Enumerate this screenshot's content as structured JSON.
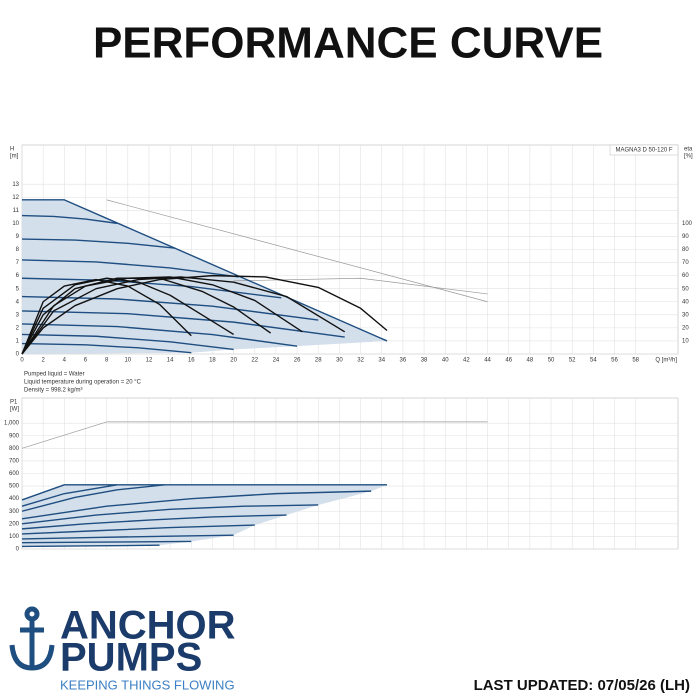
{
  "header": {
    "title": "PERFORMANCE CURVE"
  },
  "chart_data": [
    {
      "type": "line",
      "model": "MAGNA3 D 50-120 F",
      "y_label": [
        "H",
        "[m]"
      ],
      "y2_label": [
        "eta",
        "[%]"
      ],
      "x_label": "Q [m³/h]",
      "notes": [
        "Pumped liquid = Water",
        "Liquid temperature during operation = 20 °C",
        "Density = 998.2 kg/m³"
      ],
      "xlim": [
        0,
        62
      ],
      "xticks": [
        0,
        2,
        4,
        6,
        8,
        10,
        12,
        14,
        16,
        18,
        20,
        22,
        24,
        26,
        28,
        30,
        32,
        34,
        36,
        38,
        40,
        42,
        44,
        46,
        48,
        50,
        52,
        54,
        56,
        58
      ],
      "ylim": [
        0,
        16
      ],
      "yticks": [
        0,
        1,
        2,
        3,
        4,
        5,
        6,
        7,
        8,
        9,
        10,
        11,
        12,
        13
      ],
      "y2lim": [
        0,
        160
      ],
      "y2ticks": [
        10,
        20,
        30,
        40,
        50,
        60,
        70,
        80,
        90,
        100
      ],
      "grid": true,
      "area": {
        "color": "#cfdcea",
        "x": [
          0,
          4,
          34.5,
          26,
          20,
          16,
          0
        ],
        "values": [
          11.8,
          11.8,
          1.0,
          0.6,
          0.35,
          0.1,
          0
        ]
      },
      "series": [
        {
          "color": "#999999",
          "x": [
            8,
            44
          ],
          "values": [
            11.8,
            4.0
          ]
        },
        {
          "color": "#999999",
          "x": [
            20,
            32,
            44
          ],
          "values": [
            5.6,
            5.8,
            4.6
          ]
        },
        {
          "color": "#1f4e80",
          "x": [
            0,
            4,
            34.5
          ],
          "values": [
            11.8,
            11.8,
            1.0
          ]
        },
        {
          "color": "#1f4e80",
          "x": [
            0,
            3,
            6,
            9
          ],
          "values": [
            10.6,
            10.53,
            10.33,
            10.0
          ]
        },
        {
          "color": "#1f4e80",
          "x": [
            0,
            5,
            10,
            14.5
          ],
          "values": [
            8.8,
            8.72,
            8.47,
            8.1
          ]
        },
        {
          "color": "#1f4e80",
          "x": [
            0,
            7,
            14,
            20.5
          ],
          "values": [
            7.2,
            7.05,
            6.59,
            5.9
          ]
        },
        {
          "color": "#1f4e80",
          "x": [
            0,
            8,
            16,
            24.5
          ],
          "values": [
            5.8,
            5.64,
            5.16,
            4.3
          ]
        },
        {
          "color": "#1f4e80",
          "x": [
            0,
            9,
            18,
            28
          ],
          "values": [
            4.4,
            4.21,
            3.66,
            2.6
          ]
        },
        {
          "color": "#1f4e80",
          "x": [
            0,
            10,
            20,
            30.5
          ],
          "values": [
            3.3,
            3.09,
            2.44,
            1.3
          ]
        },
        {
          "color": "#1f4e80",
          "x": [
            0,
            9,
            18,
            26
          ],
          "values": [
            2.3,
            2.1,
            1.49,
            0.6
          ]
        },
        {
          "color": "#1f4e80",
          "x": [
            0,
            7,
            14,
            20
          ],
          "values": [
            1.5,
            1.36,
            0.93,
            0.35
          ]
        },
        {
          "color": "#1f4e80",
          "x": [
            0,
            6,
            11,
            16
          ],
          "values": [
            0.8,
            0.7,
            0.47,
            0.1
          ]
        },
        {
          "color": "#111111",
          "axis": "y2",
          "x": [
            0,
            2,
            5,
            9,
            13,
            18,
            23,
            28,
            32,
            34.5
          ],
          "values": [
            0,
            20,
            37,
            50,
            57,
            60,
            59,
            51,
            35,
            18
          ]
        },
        {
          "color": "#111111",
          "axis": "y2",
          "x": [
            0,
            3,
            7,
            11,
            15,
            20,
            25,
            30.5
          ],
          "values": [
            0,
            33,
            50,
            57,
            59,
            55,
            44,
            17
          ]
        },
        {
          "color": "#111111",
          "axis": "y2",
          "x": [
            0,
            3,
            6,
            10,
            14,
            18,
            22,
            26.5
          ],
          "values": [
            0,
            37,
            52,
            58,
            59,
            53,
            41,
            17
          ]
        },
        {
          "color": "#111111",
          "axis": "y2",
          "x": [
            0,
            2,
            5,
            9,
            13,
            17,
            20,
            23.5
          ],
          "values": [
            0,
            30,
            50,
            58,
            58,
            48,
            36,
            16
          ]
        },
        {
          "color": "#111111",
          "axis": "y2",
          "x": [
            0,
            2,
            5,
            8,
            11,
            14,
            17,
            20
          ],
          "values": [
            0,
            35,
            53,
            58,
            55,
            45,
            30,
            15
          ]
        },
        {
          "color": "#111111",
          "axis": "y2",
          "x": [
            0,
            2,
            4,
            7,
            10,
            13,
            16
          ],
          "values": [
            0,
            40,
            52,
            57,
            52,
            38,
            14
          ]
        }
      ]
    },
    {
      "type": "line",
      "y_label": [
        "P1",
        "[W]"
      ],
      "xlim": [
        0,
        62
      ],
      "ylim": [
        0,
        1200
      ],
      "yticks": [
        0,
        100,
        200,
        300,
        400,
        500,
        600,
        700,
        800,
        900,
        {
          "value": 1000,
          "label": "1,000"
        }
      ],
      "grid": true,
      "area": {
        "color": "#cfdcea",
        "x": [
          0,
          4,
          34.5,
          33,
          28,
          25,
          22,
          20,
          16,
          13,
          0
        ],
        "values": [
          390,
          510,
          510,
          460,
          350,
          270,
          190,
          110,
          60,
          30,
          20
        ]
      },
      "series": [
        {
          "color": "#999999",
          "x": [
            0,
            8,
            44
          ],
          "values": [
            800,
            1010,
            1010
          ]
        },
        {
          "color": "#1f4e80",
          "x": [
            0,
            4,
            34.5
          ],
          "values": [
            390,
            510,
            510
          ]
        },
        {
          "color": "#1f4e80",
          "x": [
            0,
            4,
            9
          ],
          "values": [
            340,
            440,
            510
          ]
        },
        {
          "color": "#1f4e80",
          "x": [
            0,
            5,
            9,
            13.5
          ],
          "values": [
            300,
            410,
            470,
            510
          ]
        },
        {
          "color": "#1f4e80",
          "x": [
            0,
            8,
            16,
            24,
            33
          ],
          "values": [
            240,
            340,
            400,
            440,
            460
          ]
        },
        {
          "color": "#1f4e80",
          "x": [
            0,
            7,
            14,
            21,
            28
          ],
          "values": [
            200,
            270,
            315,
            340,
            350
          ]
        },
        {
          "color": "#1f4e80",
          "x": [
            0,
            6,
            12,
            18,
            25
          ],
          "values": [
            160,
            200,
            230,
            255,
            270
          ]
        },
        {
          "color": "#1f4e80",
          "x": [
            0,
            7,
            14,
            22
          ],
          "values": [
            120,
            145,
            170,
            190
          ]
        },
        {
          "color": "#1f4e80",
          "x": [
            0,
            7,
            14,
            20
          ],
          "values": [
            80,
            92,
            102,
            110
          ]
        },
        {
          "color": "#1f4e80",
          "x": [
            0,
            8,
            16
          ],
          "values": [
            50,
            55,
            60
          ]
        },
        {
          "color": "#1f4e80",
          "x": [
            0,
            7,
            13
          ],
          "values": [
            20,
            25,
            30
          ]
        }
      ]
    }
  ],
  "footer": {
    "brand": [
      "ANCHOR",
      "PUMPS"
    ],
    "tagline": "KEEPING THINGS FLOWING",
    "updated": "LAST UPDATED: 07/05/26 (LH)"
  }
}
